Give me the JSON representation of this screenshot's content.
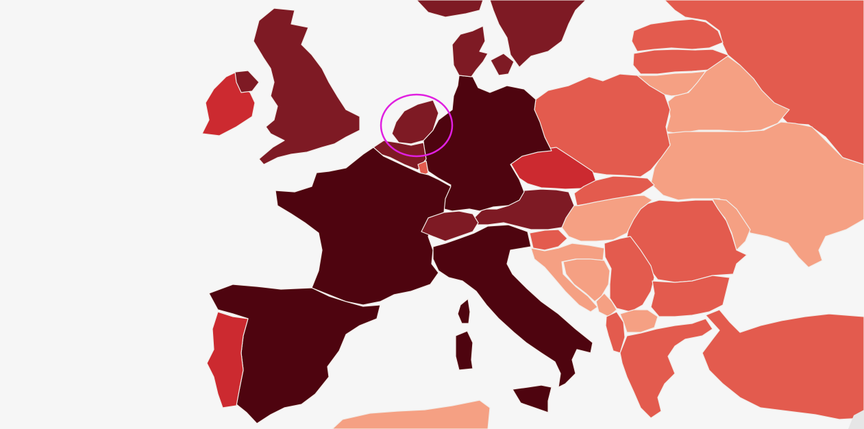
{
  "map": {
    "type": "choropleth",
    "region": "Europe",
    "scale_colors": {
      "level_1": "#f5a083",
      "level_2": "#e35b4e",
      "level_3": "#cc2a30",
      "level_4": "#7e1a24",
      "level_5": "#4e040f"
    },
    "countries": [
      {
        "id": "GB",
        "level": 4
      },
      {
        "id": "IE",
        "level": 3
      },
      {
        "id": "NIR",
        "level": 4
      },
      {
        "id": "FR",
        "level": 5
      },
      {
        "id": "ES",
        "level": 5
      },
      {
        "id": "PT",
        "level": 3
      },
      {
        "id": "DE",
        "level": 5
      },
      {
        "id": "NL",
        "level": 4
      },
      {
        "id": "BE",
        "level": 4
      },
      {
        "id": "LU",
        "level": 2
      },
      {
        "id": "CH",
        "level": 4
      },
      {
        "id": "AT",
        "level": 4
      },
      {
        "id": "IT",
        "level": 5
      },
      {
        "id": "DK",
        "level": 4
      },
      {
        "id": "SE",
        "level": 4
      },
      {
        "id": "NO",
        "level": 4
      },
      {
        "id": "PL",
        "level": 2
      },
      {
        "id": "CZ",
        "level": 3
      },
      {
        "id": "SK",
        "level": 2
      },
      {
        "id": "HU",
        "level": 1
      },
      {
        "id": "SI",
        "level": 2
      },
      {
        "id": "HR",
        "level": 1
      },
      {
        "id": "BA",
        "level": 1
      },
      {
        "id": "RS",
        "level": 2
      },
      {
        "id": "ME",
        "level": 1
      },
      {
        "id": "MK",
        "level": 1
      },
      {
        "id": "AL",
        "level": 2
      },
      {
        "id": "GR",
        "level": 2
      },
      {
        "id": "BG",
        "level": 2
      },
      {
        "id": "RO",
        "level": 2
      },
      {
        "id": "MD",
        "level": 1
      },
      {
        "id": "UA",
        "level": 1
      },
      {
        "id": "BY",
        "level": 1
      },
      {
        "id": "LT",
        "level": 1
      },
      {
        "id": "LV",
        "level": 2
      },
      {
        "id": "EE",
        "level": 2
      },
      {
        "id": "RU",
        "level": 2
      },
      {
        "id": "TR",
        "level": 2
      },
      {
        "id": "CORSICA",
        "level": 5
      },
      {
        "id": "SARDINIA",
        "level": 5
      },
      {
        "id": "SICILY",
        "level": 5
      },
      {
        "id": "AFRICA",
        "level": 1
      }
    ],
    "highlight": {
      "country": "NL",
      "color": "#e020e0"
    }
  }
}
